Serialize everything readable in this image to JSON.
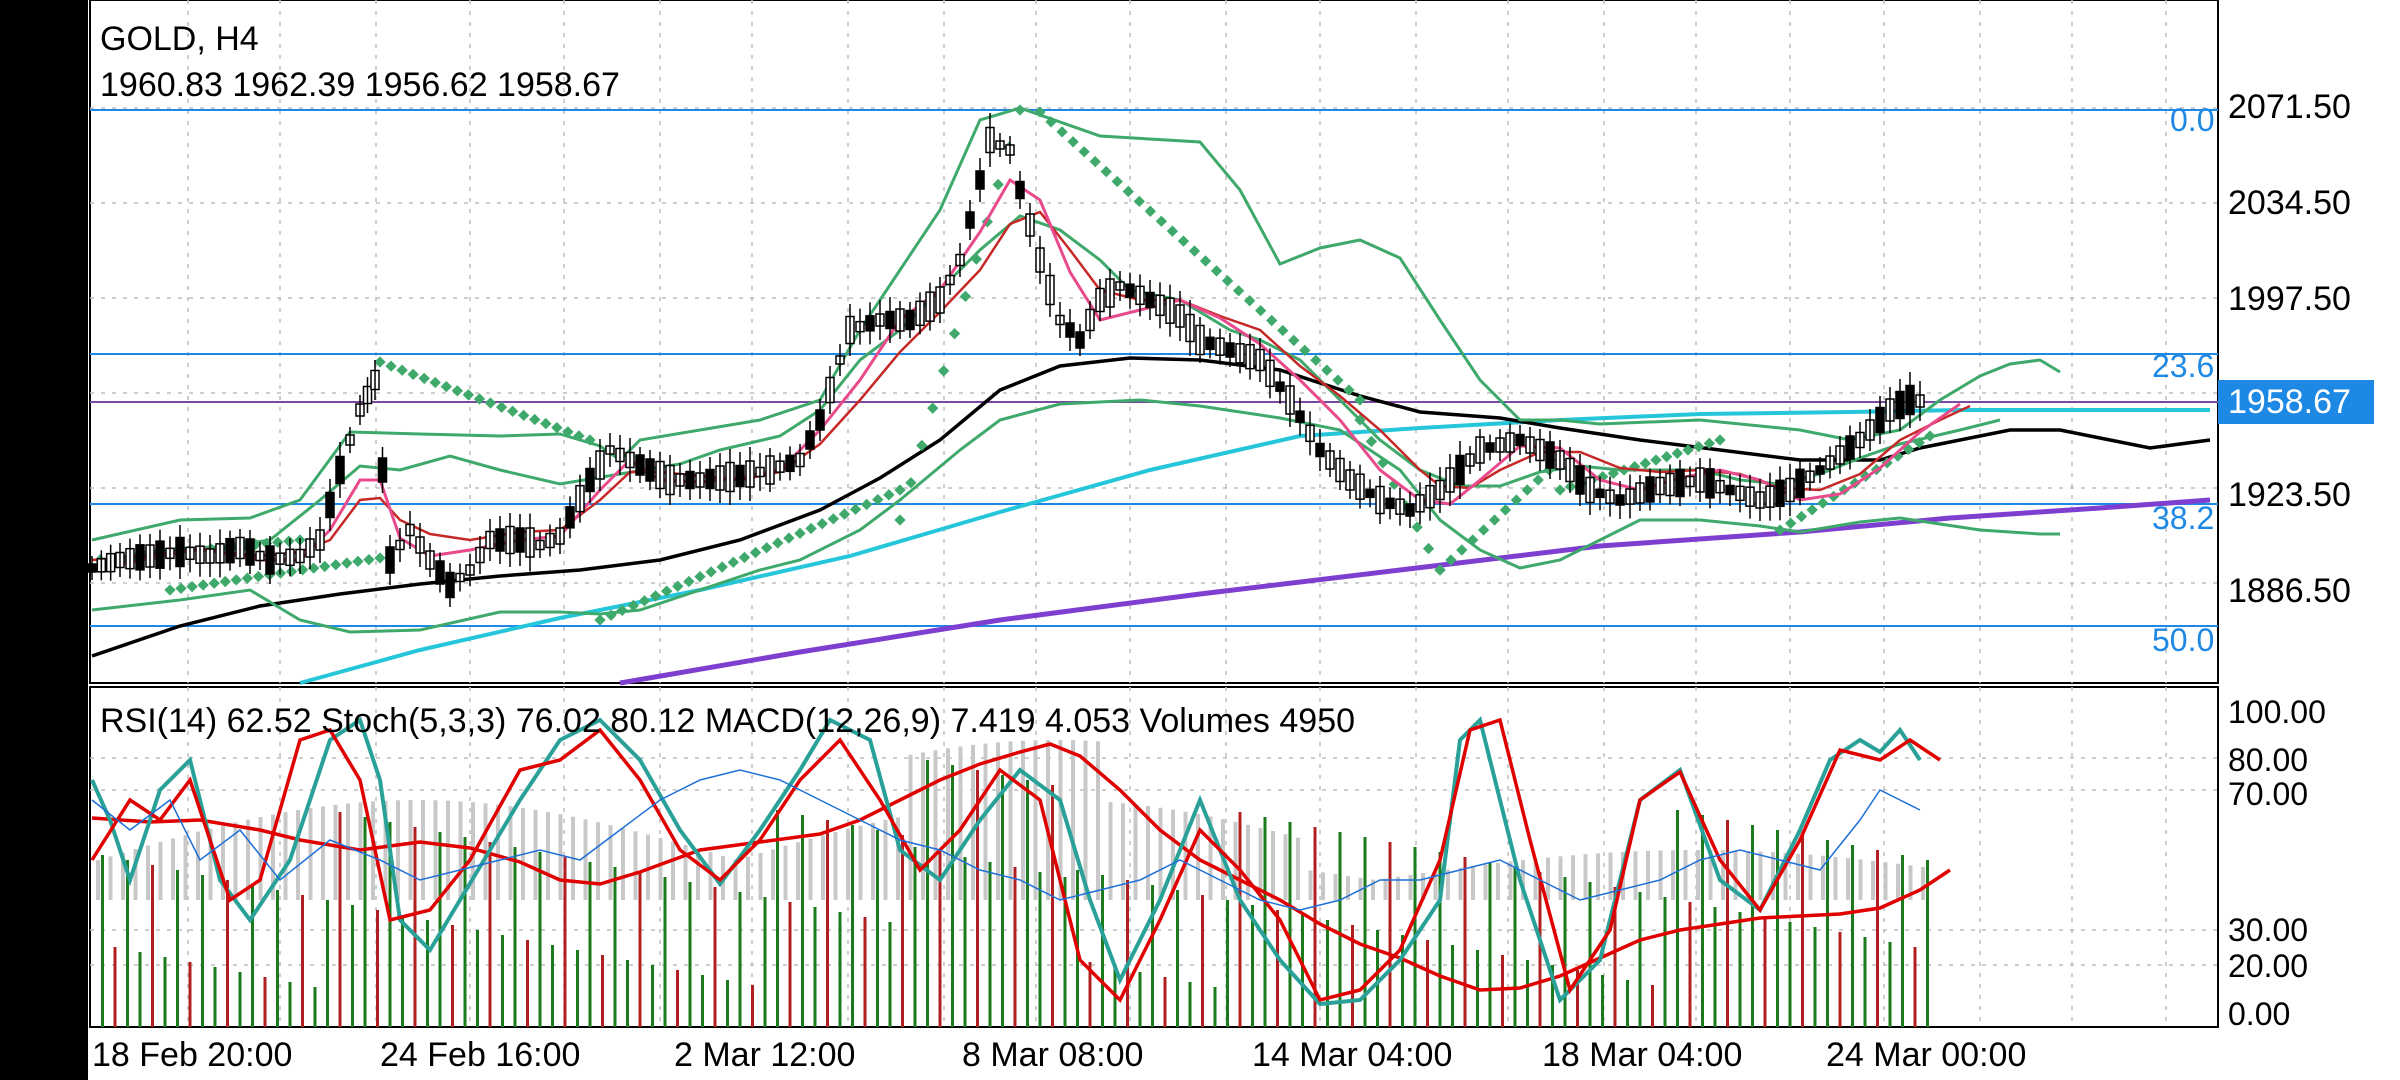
{
  "header": {
    "symbol_timeframe": "GOLD, H4",
    "ohlc": "1960.83 1962.39 1956.62 1958.67"
  },
  "price_axis": {
    "labels": [
      "2071.50",
      "2034.50",
      "1997.50",
      "1923.50",
      "1886.50"
    ],
    "last_price": "1958.67"
  },
  "fibonacci_levels": [
    "0.0",
    "23.6",
    "38.2",
    "50.0"
  ],
  "indicator_legend": "RSI(14) 62.52 Stoch(5,3,3) 76.02 80.12 MACD(12,26,9) 7.419 4.053 Volumes 4950",
  "oscillator_axis": {
    "labels": [
      "100.00",
      "80.00",
      "70.00",
      "30.00",
      "20.00",
      "0.00"
    ]
  },
  "time_axis": {
    "labels": [
      "18 Feb 20:00",
      "24 Feb 16:00",
      "2 Mar 12:00",
      "8 Mar 08:00",
      "14 Mar 04:00",
      "18 Mar 04:00",
      "24 Mar 00:00"
    ]
  },
  "colors": {
    "fib_line": "#1e88e5",
    "bollinger": "#3ea96b",
    "parabolic_sar": "#3ea96b",
    "ma_fast": "#e84a8c",
    "ma_mid": "#c62828",
    "ma_slow": "#000000",
    "ma_cyan": "#26c6da",
    "ma_purple": "#7e3fd1",
    "rsi": "#1e6fd9",
    "stoch_main": "#2aa198",
    "stoch_signal": "#e00000",
    "volume_up": "#1b7a1b",
    "volume_down": "#b02020",
    "macd_hist": "#c8c8c8",
    "last_price_bg": "#1e88e5"
  }
}
